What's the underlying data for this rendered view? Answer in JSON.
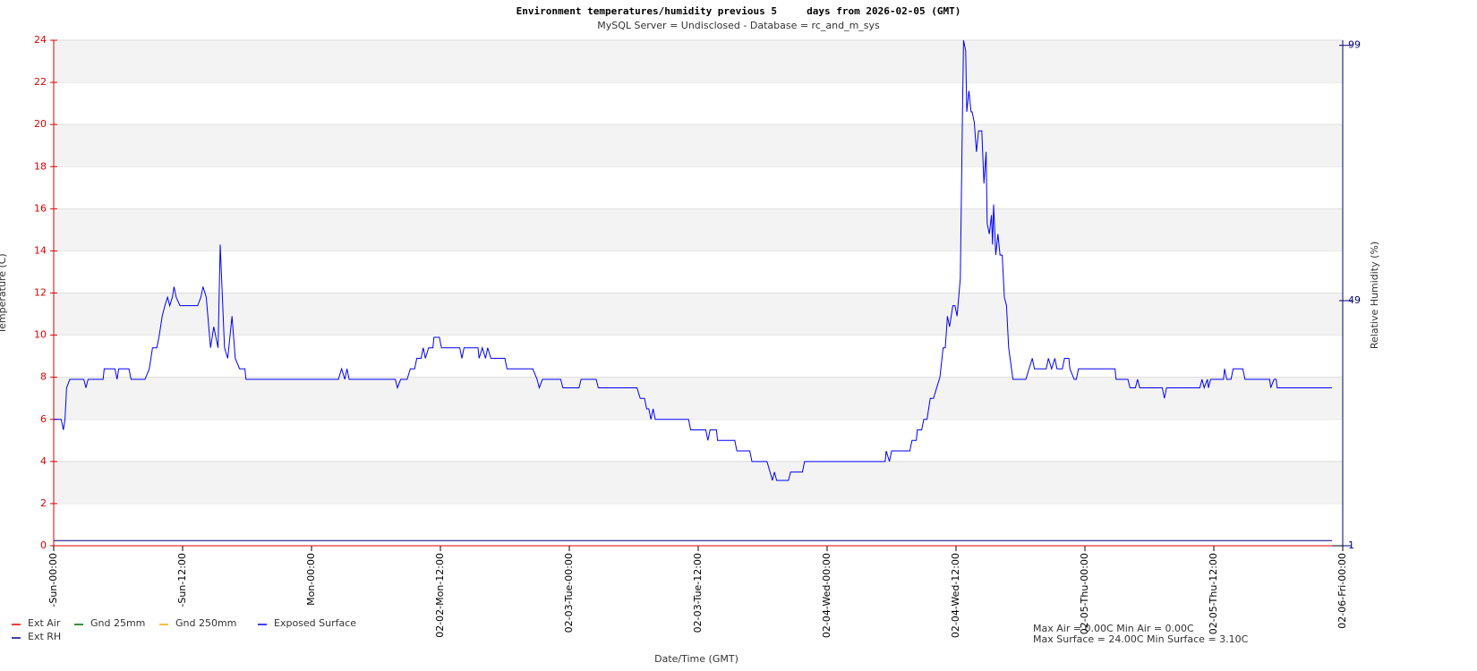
{
  "chart_data": {
    "type": "line",
    "title": "Environment temperatures/humidity previous 5     days from 2026-02-05 (GMT)",
    "subtitle": "MySQL Server = Undisclosed - Database = rc_and_m_sys",
    "ylabel": "Temperature (C)",
    "y2label": "Relative Humidity (%)",
    "xlabel": "Date/Time (GMT)",
    "annotations": [
      "Max Air = 0.00C Min Air = 0.00C",
      "Max Surface = 24.00C Min Surface = 3.10C"
    ],
    "xlim": [
      0,
      120
    ],
    "xticks": [
      {
        "value": 0,
        "label": "-Sun-00:00"
      },
      {
        "value": 12,
        "label": "-Sun-12:00"
      },
      {
        "value": 24,
        "label": "Mon-00:00"
      },
      {
        "value": 36,
        "label": "02-02-Mon-12:00"
      },
      {
        "value": 48,
        "label": "02-03-Tue-00:00"
      },
      {
        "value": 60,
        "label": "02-03-Tue-12:00"
      },
      {
        "value": 72,
        "label": "02-04-Wed-00:00"
      },
      {
        "value": 84,
        "label": "02-04-Wed-12:00"
      },
      {
        "value": 96,
        "label": "02-05-Thu-00:00"
      },
      {
        "value": 108,
        "label": "02-05-Thu-12:00"
      },
      {
        "value": 120,
        "label": "02-06-Fri-00:00"
      }
    ],
    "ylim": [
      0,
      24
    ],
    "yticks": [
      0,
      2,
      4,
      6,
      8,
      10,
      12,
      14,
      16,
      18,
      20,
      22,
      24
    ],
    "y2lim": [
      1,
      100
    ],
    "y2ticks": [
      1,
      49,
      99
    ],
    "grid": "bands",
    "legend": "bottom-left",
    "series": [
      {
        "name": "Ext Air",
        "color": "#e00000",
        "x": [
          0,
          119
        ],
        "values": [
          0,
          0
        ]
      },
      {
        "name": "Gnd 25mm",
        "color": "#006400",
        "x": [],
        "values": []
      },
      {
        "name": "Gnd 250mm",
        "color": "#ffa500",
        "x": [],
        "values": []
      },
      {
        "name": "Exposed Surface",
        "color": "#0000ff",
        "x": [
          0,
          0.7,
          0.9,
          1.05,
          1.2,
          1.5,
          2.8,
          3.0,
          3.2,
          4.6,
          4.7,
          5.7,
          5.9,
          6.05,
          7.0,
          7.2,
          8.5,
          8.9,
          9.2,
          9.6,
          9.8,
          10.1,
          10.35,
          10.6,
          10.8,
          11.05,
          11.2,
          11.4,
          11.75,
          13.4,
          13.7,
          13.9,
          14.2,
          14.6,
          14.9,
          15.3,
          15.5,
          15.9,
          16.2,
          16.6,
          16.9,
          17.3,
          17.8,
          17.9,
          26.5,
          26.8,
          27.1,
          27.3,
          27.5,
          31.8,
          32.0,
          32.3,
          32.9,
          33.2,
          33.6,
          33.8,
          34.2,
          34.4,
          34.6,
          34.9,
          35.3,
          35.4,
          35.9,
          36.1,
          37.8,
          38.0,
          38.2,
          39.5,
          39.6,
          39.9,
          40.2,
          40.4,
          40.7,
          42.0,
          42.2,
          44.6,
          45.0,
          45.2,
          45.5,
          47.2,
          47.4,
          48.9,
          49.1,
          50.5,
          50.7,
          54.3,
          54.6,
          55.0,
          55.2,
          55.4,
          55.6,
          55.8,
          56.0,
          59.1,
          59.3,
          60.7,
          60.9,
          61.1,
          61.7,
          61.8,
          63.4,
          63.6,
          64.8,
          65.0,
          66.4,
          66.8,
          66.9,
          67.1,
          67.3,
          68.4,
          68.6,
          69.7,
          69.9,
          77.4,
          77.5,
          77.8,
          78.0,
          79.7,
          79.9,
          80.3,
          80.4,
          80.8,
          81.0,
          81.3,
          81.6,
          81.9,
          82.2,
          82.5,
          82.8,
          83.0,
          83.2,
          83.4,
          83.7,
          83.9,
          84.1,
          84.4,
          84.6,
          84.7,
          84.9,
          85.0,
          85.2,
          85.4,
          85.5,
          85.7,
          85.9,
          86.1,
          86.4,
          86.6,
          86.8,
          86.9,
          87.1,
          87.3,
          87.4,
          87.5,
          87.7,
          87.9,
          88.1,
          88.3,
          88.5,
          88.7,
          88.9,
          89.3,
          90.5,
          90.8,
          91.1,
          91.3,
          92.4,
          92.6,
          92.9,
          93.2,
          93.4,
          93.9,
          94.1,
          94.5,
          94.6,
          95.0,
          95.2,
          95.4,
          98.8,
          98.9,
          100.0,
          100.2,
          100.7,
          100.9,
          101.1,
          103.2,
          103.4,
          103.6,
          106.7,
          106.9,
          107.1,
          107.4,
          107.5,
          107.7,
          108.9,
          109.0,
          109.2,
          109.6,
          109.8,
          110.7,
          110.9,
          113.2,
          113.3,
          113.6,
          113.8,
          113.9,
          119.0
        ],
        "values": [
          6.0,
          6.0,
          5.5,
          6.0,
          7.5,
          7.9,
          7.9,
          7.5,
          7.9,
          7.9,
          8.4,
          8.4,
          7.9,
          8.4,
          8.4,
          7.9,
          7.9,
          8.4,
          9.4,
          9.4,
          9.9,
          10.9,
          11.4,
          11.8,
          11.4,
          11.8,
          12.3,
          11.8,
          11.4,
          11.4,
          11.8,
          12.3,
          11.8,
          9.4,
          10.4,
          9.4,
          14.3,
          9.4,
          8.9,
          10.9,
          8.9,
          8.4,
          8.4,
          7.9,
          7.9,
          8.4,
          7.9,
          8.4,
          7.9,
          7.9,
          7.5,
          7.9,
          7.9,
          8.4,
          8.4,
          8.9,
          8.9,
          9.4,
          8.9,
          9.4,
          9.4,
          9.9,
          9.9,
          9.4,
          9.4,
          8.9,
          9.4,
          9.4,
          8.9,
          9.4,
          8.9,
          9.4,
          8.9,
          8.9,
          8.4,
          8.4,
          7.9,
          7.5,
          7.9,
          7.9,
          7.5,
          7.5,
          7.9,
          7.9,
          7.5,
          7.5,
          7.0,
          7.0,
          6.5,
          6.5,
          6.0,
          6.5,
          6.0,
          6.0,
          5.5,
          5.5,
          5.0,
          5.5,
          5.5,
          5.0,
          5.0,
          4.5,
          4.5,
          4.0,
          4.0,
          3.3,
          3.1,
          3.5,
          3.1,
          3.1,
          3.5,
          3.5,
          4.0,
          4.0,
          4.5,
          4.0,
          4.5,
          4.5,
          5.0,
          5.0,
          5.5,
          5.5,
          6.0,
          6.0,
          7.0,
          7.0,
          7.5,
          8.0,
          9.4,
          9.4,
          10.9,
          10.4,
          11.4,
          11.4,
          10.9,
          12.7,
          20.5,
          24.0,
          23.5,
          20.6,
          21.6,
          20.6,
          20.6,
          20.1,
          18.7,
          19.7,
          19.7,
          17.2,
          18.7,
          15.3,
          14.8,
          15.7,
          14.3,
          16.2,
          13.8,
          14.8,
          13.8,
          13.8,
          11.8,
          11.4,
          9.4,
          7.9,
          7.9,
          8.4,
          8.9,
          8.4,
          8.4,
          8.9,
          8.4,
          8.9,
          8.4,
          8.4,
          8.9,
          8.9,
          8.4,
          7.9,
          7.9,
          8.4,
          8.4,
          7.9,
          7.9,
          7.5,
          7.5,
          7.9,
          7.5,
          7.5,
          7.0,
          7.5,
          7.5,
          7.9,
          7.5,
          7.9,
          7.5,
          7.9,
          7.9,
          8.4,
          7.9,
          7.9,
          8.4,
          8.4,
          7.9,
          7.9,
          7.5,
          7.9,
          7.9,
          7.5,
          7.5
        ]
      },
      {
        "name": "Ext RH",
        "color": "#000080",
        "axis": "y2",
        "x": [
          0,
          119
        ],
        "values": [
          2,
          2
        ]
      }
    ]
  }
}
